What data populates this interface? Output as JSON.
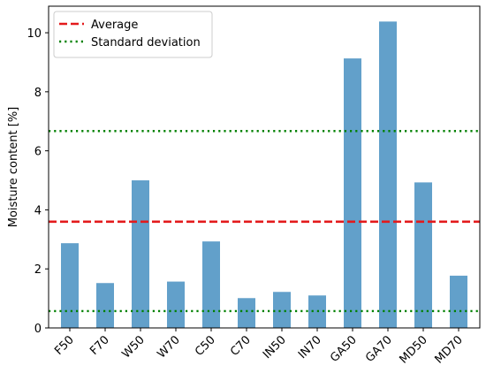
{
  "chart_data": {
    "type": "bar",
    "title": "",
    "xlabel": "",
    "ylabel": "Moisture content [%]",
    "categories": [
      "F50",
      "F70",
      "W50",
      "W70",
      "C50",
      "C70",
      "IN50",
      "IN70",
      "GA50",
      "GA70",
      "MD50",
      "MD70"
    ],
    "values": [
      2.87,
      1.52,
      5.0,
      1.57,
      2.93,
      1.01,
      1.22,
      1.1,
      9.13,
      10.38,
      4.93,
      1.77
    ],
    "ylim": [
      0,
      10.9
    ],
    "yticks": [
      0,
      2,
      4,
      6,
      8,
      10
    ],
    "bar_color": "#1f77b4",
    "bar_opacity": 0.7,
    "reference_lines": [
      {
        "name": "Average",
        "value": 3.6,
        "color": "#e31a1c",
        "style": "dashed"
      },
      {
        "name": "Standard deviation",
        "value": 6.67,
        "color": "#008000",
        "style": "dotted"
      },
      {
        "name": "Standard deviation",
        "value": 0.57,
        "color": "#008000",
        "style": "dotted",
        "in_legend": false
      }
    ],
    "legend": {
      "placement": "top-left",
      "entries": [
        {
          "label": "Average",
          "color": "#e31a1c",
          "style": "dashed"
        },
        {
          "label": "Standard deviation",
          "color": "#008000",
          "style": "dotted"
        }
      ]
    },
    "grid": false
  }
}
